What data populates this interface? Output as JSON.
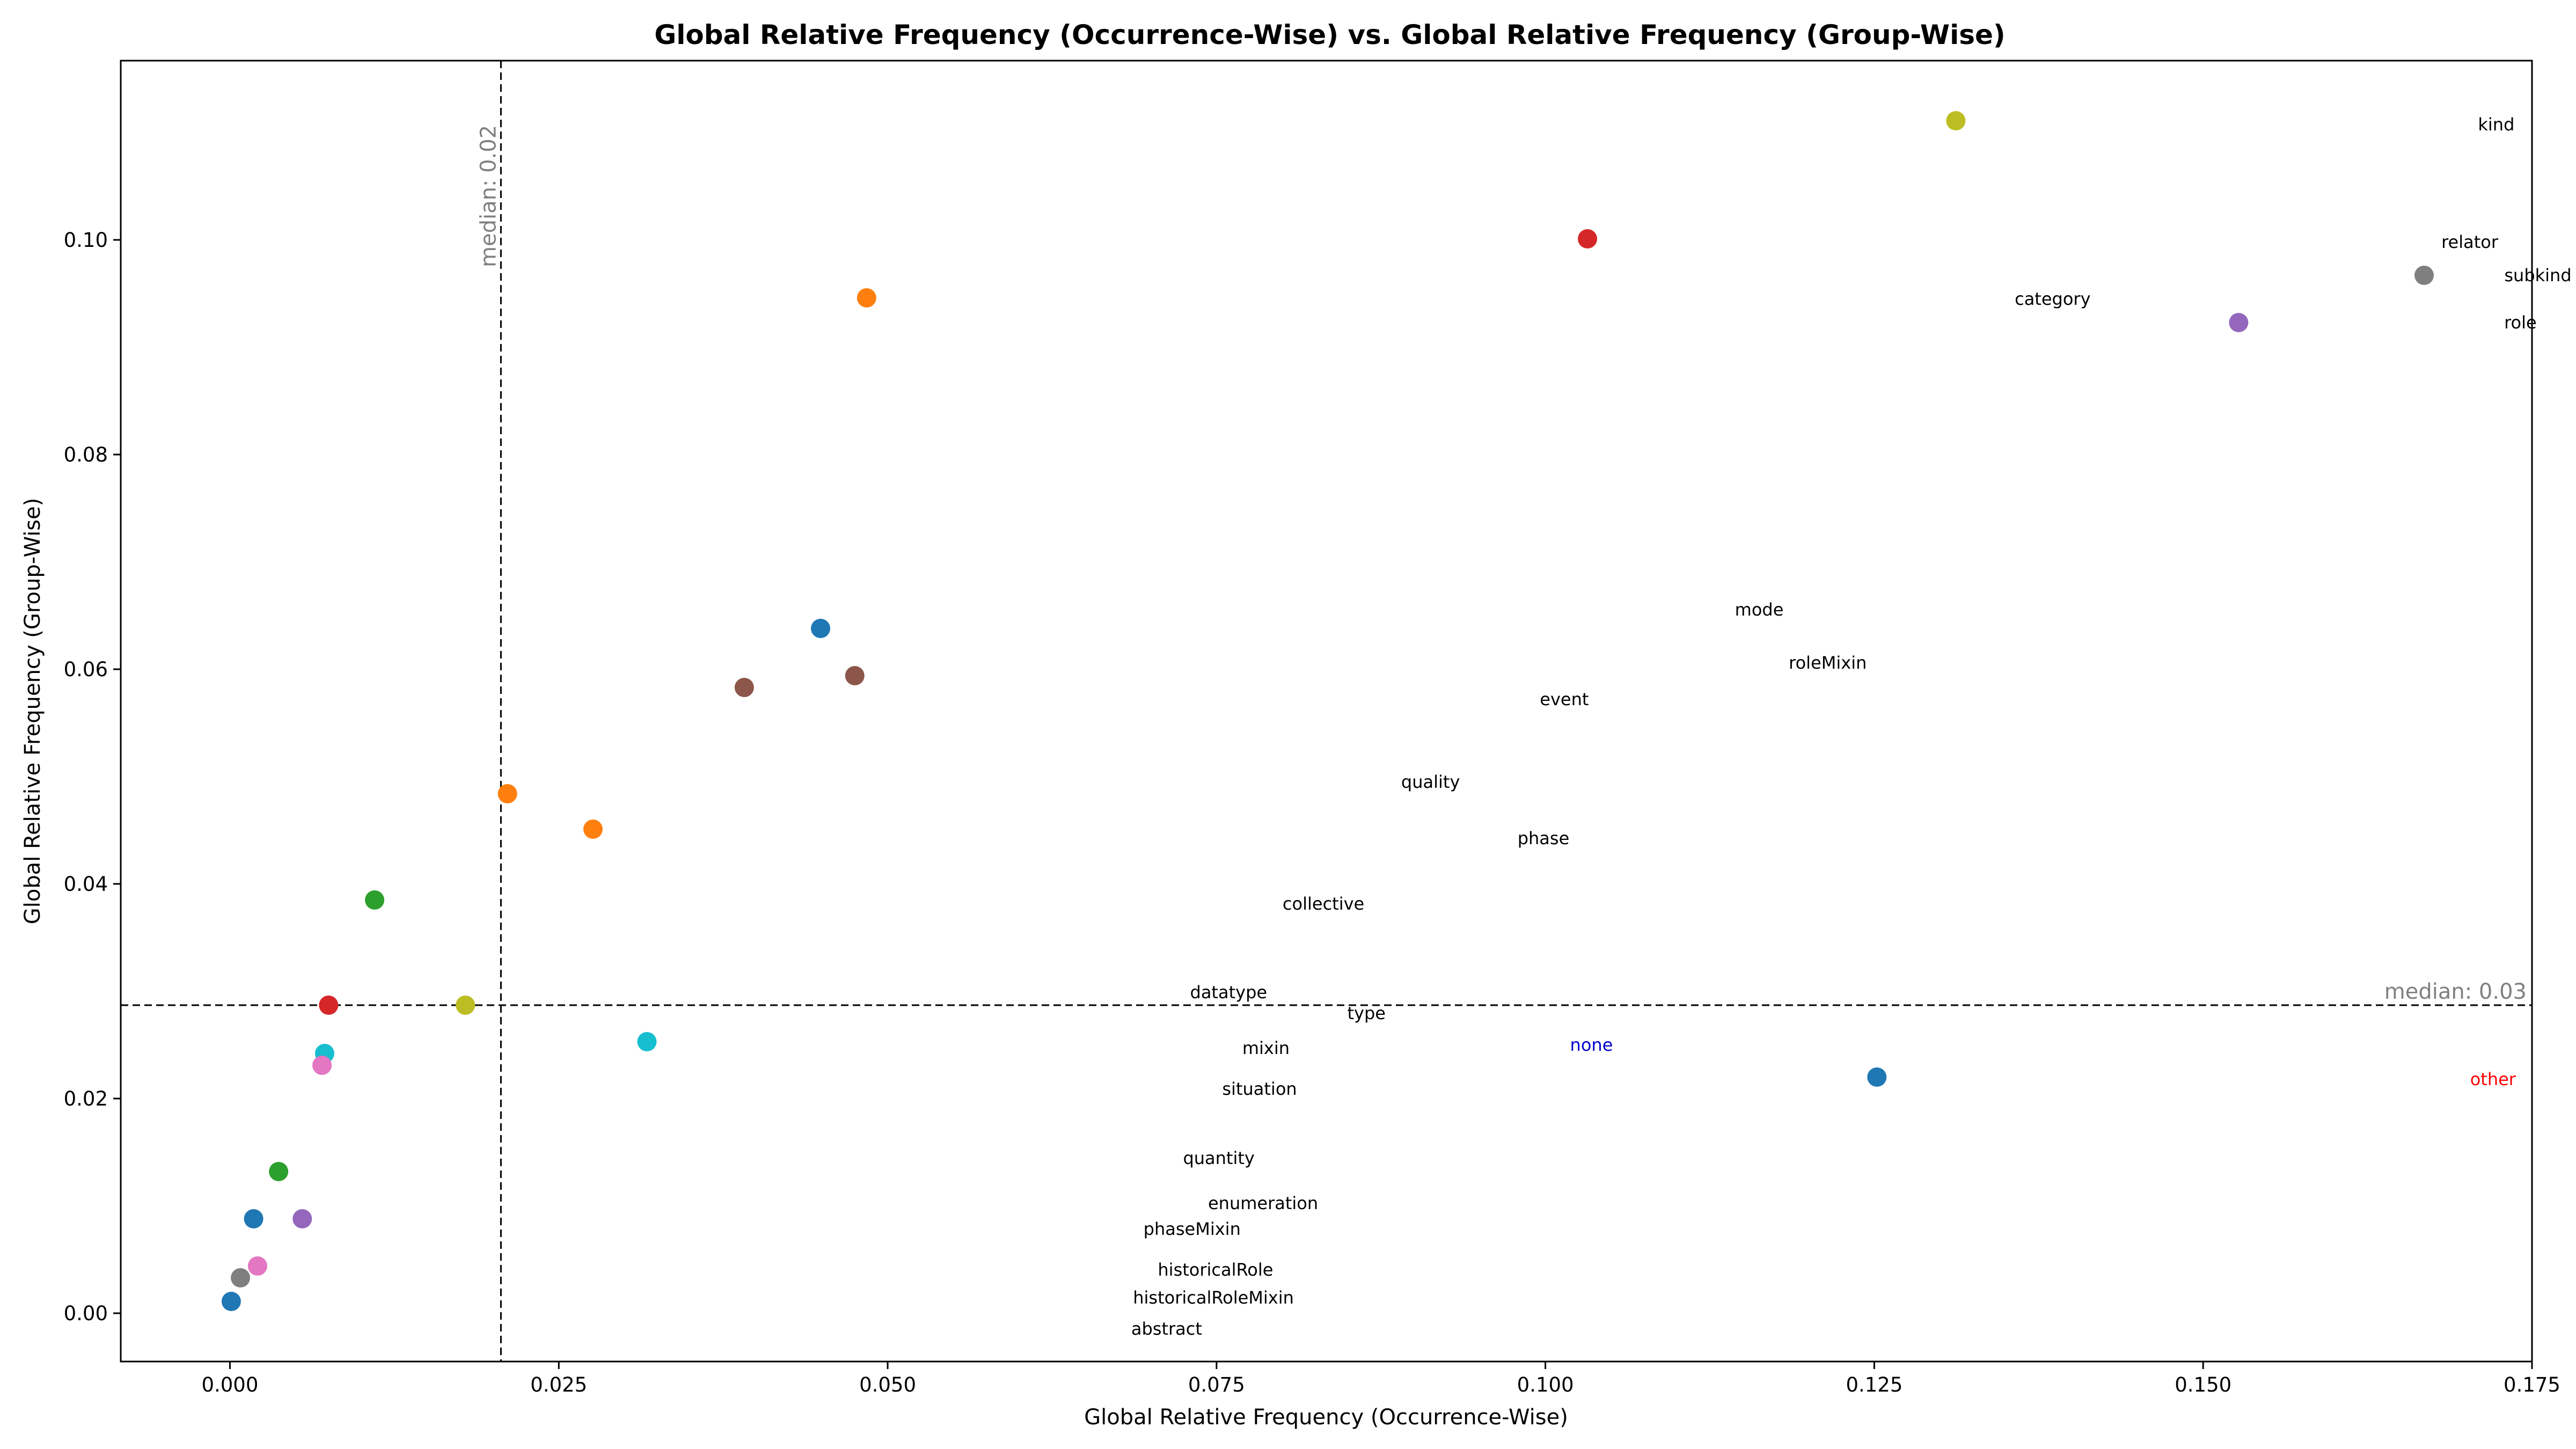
{
  "chart_data": {
    "type": "scatter",
    "title": "Global Relative Frequency (Occurrence-Wise) vs. Global Relative Frequency (Group-Wise)",
    "xlabel": "Global Relative Frequency (Occurrence-Wise)",
    "ylabel": "Global Relative Frequency (Group-Wise)",
    "xlim": [
      -0.0083,
      0.175
    ],
    "ylim": [
      -0.0045,
      0.1167
    ],
    "xticks": [
      0.0,
      0.025,
      0.05,
      0.075,
      0.1,
      0.125,
      0.15,
      0.175
    ],
    "xtick_labels": [
      "0.000",
      "0.025",
      "0.050",
      "0.075",
      "0.100",
      "0.125",
      "0.150",
      "0.175"
    ],
    "yticks": [
      0.0,
      0.02,
      0.04,
      0.06,
      0.08,
      0.1
    ],
    "ytick_labels": [
      "0.00",
      "0.02",
      "0.04",
      "0.06",
      "0.08",
      "0.10"
    ],
    "grid": false,
    "points": [
      {
        "label": "kind",
        "x": 0.1312,
        "y": 0.1111,
        "color": "#bcbd22",
        "label_color": "#000000"
      },
      {
        "label": "relator",
        "x": 0.1032,
        "y": 0.1001,
        "color": "#d62728",
        "label_color": "#000000"
      },
      {
        "label": "subkind",
        "x": 0.1668,
        "y": 0.0967,
        "color": "#7f7f7f",
        "label_color": "#000000"
      },
      {
        "label": "category",
        "x": 0.0484,
        "y": 0.0946,
        "color": "#ff7f0e",
        "label_color": "#000000"
      },
      {
        "label": "role",
        "x": 0.1527,
        "y": 0.0923,
        "color": "#9467bd",
        "label_color": "#000000"
      },
      {
        "label": "mode",
        "x": 0.0449,
        "y": 0.0638,
        "color": "#1f77b4",
        "label_color": "#000000"
      },
      {
        "label": "roleMixin",
        "x": 0.0475,
        "y": 0.0594,
        "color": "#8c564b",
        "label_color": "#000000"
      },
      {
        "label": "event",
        "x": 0.0391,
        "y": 0.0583,
        "color": "#8c564b",
        "label_color": "#000000"
      },
      {
        "label": "quality",
        "x": 0.0211,
        "y": 0.0484,
        "color": "#ff7f0e",
        "label_color": "#000000"
      },
      {
        "label": "phase",
        "x": 0.0276,
        "y": 0.0451,
        "color": "#ff7f0e",
        "label_color": "#000000"
      },
      {
        "label": "collective",
        "x": 0.011,
        "y": 0.0385,
        "color": "#2ca02c",
        "label_color": "#000000"
      },
      {
        "label": "datatype",
        "x": 0.0075,
        "y": 0.0287,
        "color": "#d62728",
        "label_color": "#000000"
      },
      {
        "label": "type",
        "x": 0.0179,
        "y": 0.0287,
        "color": "#bcbd22",
        "label_color": "#000000"
      },
      {
        "label": "none",
        "x": 0.0317,
        "y": 0.0253,
        "color": "#17becf",
        "label_color": "#0000cc"
      },
      {
        "label": "mixin",
        "x": 0.0072,
        "y": 0.0242,
        "color": "#17becf",
        "label_color": "#000000"
      },
      {
        "label": "situation",
        "x": 0.007,
        "y": 0.0231,
        "color": "#e377c2",
        "label_color": "#000000"
      },
      {
        "label": "other",
        "x": 0.1252,
        "y": 0.022,
        "color": "#1f77b4",
        "label_color": "#ff0000"
      },
      {
        "label": "quantity",
        "x": 0.0037,
        "y": 0.0132,
        "color": "#2ca02c",
        "label_color": "#000000"
      },
      {
        "label": "enumeration",
        "x": 0.0018,
        "y": 0.0088,
        "color": "#1f77b4",
        "label_color": "#000000"
      },
      {
        "label": "phaseMixin",
        "x": 0.0055,
        "y": 0.0088,
        "color": "#9467bd",
        "label_color": "#000000"
      },
      {
        "label": "historicalRole",
        "x": 0.0021,
        "y": 0.0044,
        "color": "#e377c2",
        "label_color": "#000000"
      },
      {
        "label": "historicalRoleMixin",
        "x": 0.0008,
        "y": 0.0033,
        "color": "#7f7f7f",
        "label_color": "#000000"
      },
      {
        "label": "abstract",
        "x": 0.0001,
        "y": 0.0011,
        "color": "#1f77b4",
        "label_color": "#000000"
      }
    ],
    "median_lines": [
      {
        "axis": "x",
        "value": 0.0206,
        "label": "median: 0.02"
      },
      {
        "axis": "y",
        "value": 0.0287,
        "label": "median: 0.03"
      }
    ]
  }
}
